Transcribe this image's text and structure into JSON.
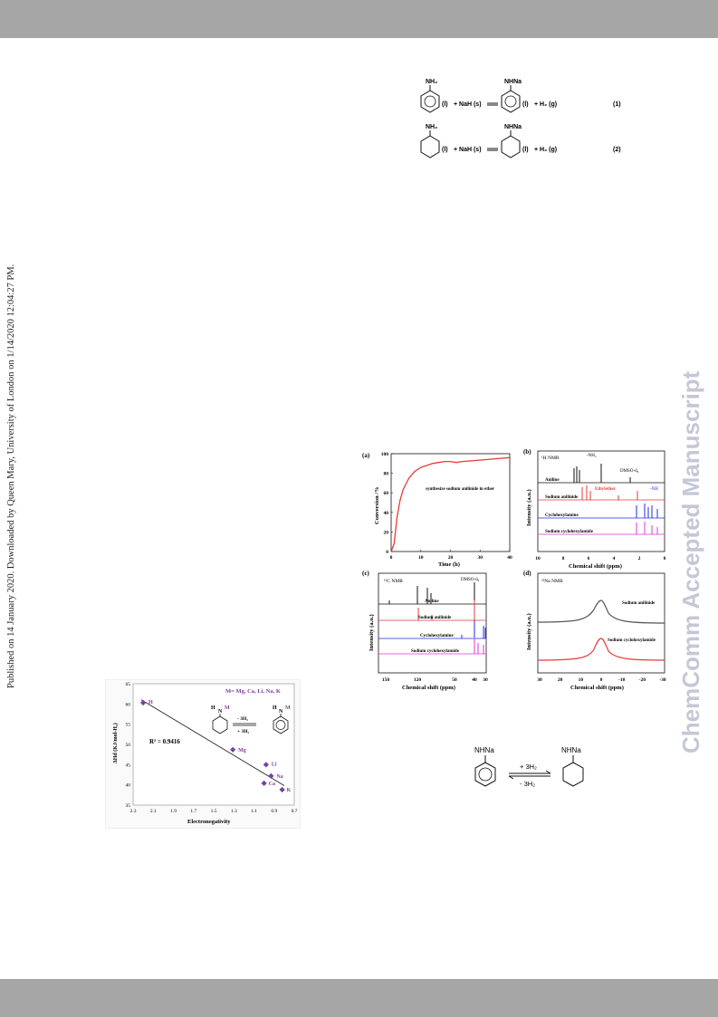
{
  "published_line": "Published on 14 January 2020. Downloaded by Queen Mary, University of London on 1/14/2020 12:04:27 PM.",
  "watermark": "ChemComm Accepted Manuscript",
  "scheme_top": {
    "rows": [
      {
        "reactant_group": "NH₂",
        "reactant_state": "(l)",
        "plus": "+ NaH (s)",
        "product_group": "NHNa",
        "product_state": "(l)",
        "byproduct": "+ H₂ (g)",
        "number": "(1)"
      },
      {
        "reactant_group": "NH₂",
        "reactant_state": "(l)",
        "plus": "+ NaH (s)",
        "product_group": "NHNa",
        "product_state": "(l)",
        "byproduct": "+ H₂ (g)",
        "number": "(2)"
      }
    ]
  },
  "figure_nmr": {
    "panel_a": {
      "label": "(a)",
      "annotation": "synthesize sodium anilinide in ether",
      "chart_data": {
        "type": "line",
        "xlabel": "Time (h)",
        "ylabel": "Conversion /%",
        "xlim": [
          0,
          40
        ],
        "ylim": [
          0,
          100
        ],
        "xticks": [
          "0",
          "10",
          "20",
          "30",
          "40"
        ],
        "yticks": [
          "0",
          "20",
          "40",
          "60",
          "80",
          "100"
        ],
        "series": [
          {
            "x": [
              0,
              1,
              2,
              3,
              4,
              6,
              8,
              10,
              12,
              14,
              16,
              18,
              20,
              22,
              24,
              28,
              32,
              36,
              40
            ],
            "y": [
              0,
              8,
              35,
              52,
              63,
              75,
              82,
              86,
              88,
              90,
              91,
              92,
              92,
              91,
              92,
              93,
              94,
              95,
              96
            ],
            "color": "#e8393a"
          }
        ]
      }
    },
    "panel_b": {
      "label": "(b)",
      "nucleus": "¹H NMR",
      "xlabel": "Chemical shift (ppm)",
      "ylabel": "Intensity (a.u.)",
      "xticks": [
        "10",
        "8",
        "6",
        "4",
        "2",
        "0"
      ],
      "annotations": [
        "-NH₂",
        "DMSO-d₆",
        "Ethylether",
        "-NH"
      ],
      "traces": [
        {
          "name": "Aniline",
          "color": "#111111"
        },
        {
          "name": "Sodium anilinide",
          "color": "#e8393a"
        },
        {
          "name": "Cyclohexylamine",
          "color": "#1f2ee0"
        },
        {
          "name": "Sodium cyclohexylamide",
          "color": "#e035d8"
        }
      ]
    },
    "panel_c": {
      "label": "(c)",
      "nucleus": "¹³C NMR",
      "xlabel": "Chemical shift (ppm)",
      "ylabel": "Intensity (a.u.)",
      "xticks": [
        "150",
        "120",
        "50",
        "40",
        "30"
      ],
      "annotations": [
        "DMSO-d₆"
      ],
      "traces": [
        {
          "name": "Aniline",
          "color": "#111111"
        },
        {
          "name": "Sodium anilinide",
          "color": "#e8393a"
        },
        {
          "name": "Cyclohexylamine",
          "color": "#1f2ee0"
        },
        {
          "name": "Sodium cyclohexylamide",
          "color": "#e035d8"
        }
      ]
    },
    "panel_d": {
      "label": "(d)",
      "nucleus": "²³Na NMR",
      "xlabel": "Chemical shift (ppm)",
      "ylabel": "Intensity (a.u.)",
      "xticks": [
        "30",
        "20",
        "10",
        "0",
        "-10",
        "-20",
        "-30"
      ],
      "traces": [
        {
          "name": "Sodium anilinide",
          "color": "#555555"
        },
        {
          "name": "Sodium cyclohexylamide",
          "color": "#e8393a"
        }
      ]
    }
  },
  "figure_electronegativity": {
    "legend_metals": "M= Mg, Ca, Li, Na, K",
    "reaction_up": "- 3H₂",
    "reaction_down": "+ 3H₂",
    "r_squared": "R² = 0.9416",
    "amine_label_h": "H",
    "amine_label_n": "N",
    "amine_label_m": "M",
    "chart_data": {
      "type": "scatter",
      "xlabel": "Electronegativity",
      "ylabel": "ΔHd (KJ/mol-H₂)",
      "xlim": [
        2.3,
        0.7
      ],
      "ylim": [
        35,
        65
      ],
      "xticks": [
        "2.3",
        "2.1",
        "1.9",
        "1.7",
        "1.5",
        "1.3",
        "1.1",
        "0.9",
        "0.7"
      ],
      "yticks": [
        "35",
        "40",
        "45",
        "50",
        "55",
        "60",
        "65"
      ],
      "points": [
        {
          "label": "H",
          "x": 2.2,
          "y": 60.3
        },
        {
          "label": "Mg",
          "x": 1.31,
          "y": 48.7
        },
        {
          "label": "Li",
          "x": 0.98,
          "y": 45.0
        },
        {
          "label": "Na",
          "x": 0.93,
          "y": 42.2
        },
        {
          "label": "Ca",
          "x": 1.0,
          "y": 40.4
        },
        {
          "label": "K",
          "x": 0.82,
          "y": 38.8
        }
      ],
      "marker_color": "#7b3ea1",
      "label_color": "#7b3ea1"
    }
  },
  "scheme_bottom": {
    "left_group": "NHNa",
    "right_group": "NHNa",
    "arrow_top": "+ 3H₂",
    "arrow_bottom": "- 3H₂"
  }
}
